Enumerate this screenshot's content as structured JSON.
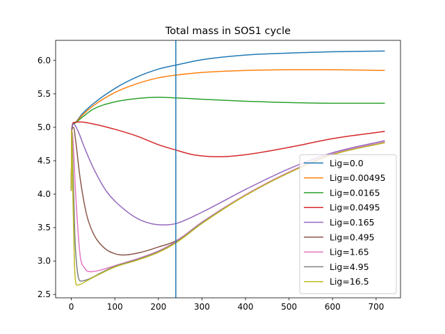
{
  "chart_data": {
    "type": "line",
    "title": "Total mass in SOS1 cycle",
    "xlabel": "",
    "ylabel": "",
    "xlim": [
      -36,
      756
    ],
    "ylim": [
      2.45,
      6.3
    ],
    "xticks": [
      0,
      100,
      200,
      300,
      400,
      500,
      600,
      700
    ],
    "yticks": [
      2.5,
      3.0,
      3.5,
      4.0,
      4.5,
      5.0,
      5.5,
      6.0
    ],
    "ytick_labels": [
      "2.5",
      "3.0",
      "3.5",
      "4.0",
      "4.5",
      "5.0",
      "5.5",
      "6.0"
    ],
    "grid": false,
    "legend_position": "lower-right",
    "vline": {
      "x": 240,
      "color": "#1f77b4"
    },
    "series": [
      {
        "name": "Lig=0.0",
        "color": "#1f77b4",
        "points": [
          [
            0,
            4.05
          ],
          [
            1,
            4.95
          ],
          [
            5,
            5.05
          ],
          [
            25,
            5.2
          ],
          [
            50,
            5.35
          ],
          [
            100,
            5.58
          ],
          [
            150,
            5.75
          ],
          [
            200,
            5.87
          ],
          [
            240,
            5.93
          ],
          [
            300,
            6.01
          ],
          [
            400,
            6.08
          ],
          [
            500,
            6.11
          ],
          [
            600,
            6.13
          ],
          [
            720,
            6.14
          ]
        ]
      },
      {
        "name": "Lig=0.00495",
        "color": "#ff7f0e",
        "points": [
          [
            0,
            4.05
          ],
          [
            1,
            4.95
          ],
          [
            5,
            5.05
          ],
          [
            25,
            5.18
          ],
          [
            50,
            5.32
          ],
          [
            100,
            5.52
          ],
          [
            150,
            5.65
          ],
          [
            200,
            5.74
          ],
          [
            240,
            5.78
          ],
          [
            300,
            5.82
          ],
          [
            400,
            5.85
          ],
          [
            500,
            5.86
          ],
          [
            600,
            5.86
          ],
          [
            720,
            5.85
          ]
        ]
      },
      {
        "name": "Lig=0.0165",
        "color": "#2ca02c",
        "points": [
          [
            0,
            4.05
          ],
          [
            1,
            4.95
          ],
          [
            5,
            5.05
          ],
          [
            25,
            5.15
          ],
          [
            50,
            5.27
          ],
          [
            100,
            5.38
          ],
          [
            150,
            5.43
          ],
          [
            200,
            5.45
          ],
          [
            240,
            5.44
          ],
          [
            300,
            5.42
          ],
          [
            400,
            5.39
          ],
          [
            500,
            5.37
          ],
          [
            600,
            5.36
          ],
          [
            720,
            5.36
          ]
        ]
      },
      {
        "name": "Lig=0.0495",
        "color": "#d62728",
        "points": [
          [
            0,
            4.05
          ],
          [
            1,
            4.95
          ],
          [
            5,
            5.07
          ],
          [
            20,
            5.08
          ],
          [
            50,
            5.05
          ],
          [
            100,
            4.97
          ],
          [
            150,
            4.87
          ],
          [
            200,
            4.74
          ],
          [
            240,
            4.66
          ],
          [
            280,
            4.59
          ],
          [
            340,
            4.56
          ],
          [
            400,
            4.59
          ],
          [
            500,
            4.7
          ],
          [
            600,
            4.83
          ],
          [
            720,
            4.94
          ]
        ]
      },
      {
        "name": "Lig=0.165",
        "color": "#9467bd",
        "points": [
          [
            0,
            4.05
          ],
          [
            1,
            4.95
          ],
          [
            5,
            5.05
          ],
          [
            15,
            4.95
          ],
          [
            30,
            4.7
          ],
          [
            50,
            4.4
          ],
          [
            80,
            4.05
          ],
          [
            120,
            3.78
          ],
          [
            160,
            3.61
          ],
          [
            210,
            3.54
          ],
          [
            240,
            3.56
          ],
          [
            300,
            3.73
          ],
          [
            400,
            4.07
          ],
          [
            500,
            4.38
          ],
          [
            600,
            4.62
          ],
          [
            720,
            4.8
          ]
        ]
      },
      {
        "name": "Lig=0.495",
        "color": "#8c564b",
        "points": [
          [
            0,
            4.05
          ],
          [
            1,
            4.95
          ],
          [
            5,
            5.0
          ],
          [
            10,
            4.8
          ],
          [
            20,
            4.25
          ],
          [
            35,
            3.7
          ],
          [
            50,
            3.42
          ],
          [
            75,
            3.2
          ],
          [
            100,
            3.11
          ],
          [
            120,
            3.09
          ],
          [
            160,
            3.13
          ],
          [
            200,
            3.21
          ],
          [
            240,
            3.3
          ],
          [
            300,
            3.58
          ],
          [
            400,
            3.99
          ],
          [
            500,
            4.33
          ],
          [
            600,
            4.6
          ],
          [
            720,
            4.78
          ]
        ]
      },
      {
        "name": "Lig=1.65",
        "color": "#e377c2",
        "points": [
          [
            0,
            4.05
          ],
          [
            1,
            4.95
          ],
          [
            4,
            4.8
          ],
          [
            10,
            4.0
          ],
          [
            20,
            3.1
          ],
          [
            30,
            2.9
          ],
          [
            45,
            2.84
          ],
          [
            70,
            2.87
          ],
          [
            100,
            2.93
          ],
          [
            150,
            3.03
          ],
          [
            200,
            3.15
          ],
          [
            240,
            3.29
          ],
          [
            300,
            3.58
          ],
          [
            400,
            3.99
          ],
          [
            500,
            4.33
          ],
          [
            600,
            4.6
          ],
          [
            720,
            4.78
          ]
        ]
      },
      {
        "name": "Lig=4.95",
        "color": "#7f7f7f",
        "points": [
          [
            0,
            4.05
          ],
          [
            1,
            4.95
          ],
          [
            3,
            4.6
          ],
          [
            8,
            3.4
          ],
          [
            15,
            2.8
          ],
          [
            22,
            2.7
          ],
          [
            40,
            2.73
          ],
          [
            70,
            2.83
          ],
          [
            100,
            2.92
          ],
          [
            150,
            3.02
          ],
          [
            200,
            3.14
          ],
          [
            240,
            3.28
          ],
          [
            300,
            3.57
          ],
          [
            400,
            3.98
          ],
          [
            500,
            4.32
          ],
          [
            600,
            4.59
          ],
          [
            720,
            4.77
          ]
        ]
      },
      {
        "name": "Lig=16.5",
        "color": "#bcbd22",
        "points": [
          [
            0,
            4.05
          ],
          [
            1,
            4.95
          ],
          [
            3,
            4.2
          ],
          [
            7,
            3.0
          ],
          [
            13,
            2.64
          ],
          [
            20,
            2.65
          ],
          [
            40,
            2.72
          ],
          [
            70,
            2.82
          ],
          [
            100,
            2.91
          ],
          [
            150,
            3.01
          ],
          [
            200,
            3.13
          ],
          [
            240,
            3.27
          ],
          [
            300,
            3.56
          ],
          [
            400,
            3.98
          ],
          [
            500,
            4.32
          ],
          [
            600,
            4.59
          ],
          [
            720,
            4.77
          ]
        ]
      }
    ]
  }
}
